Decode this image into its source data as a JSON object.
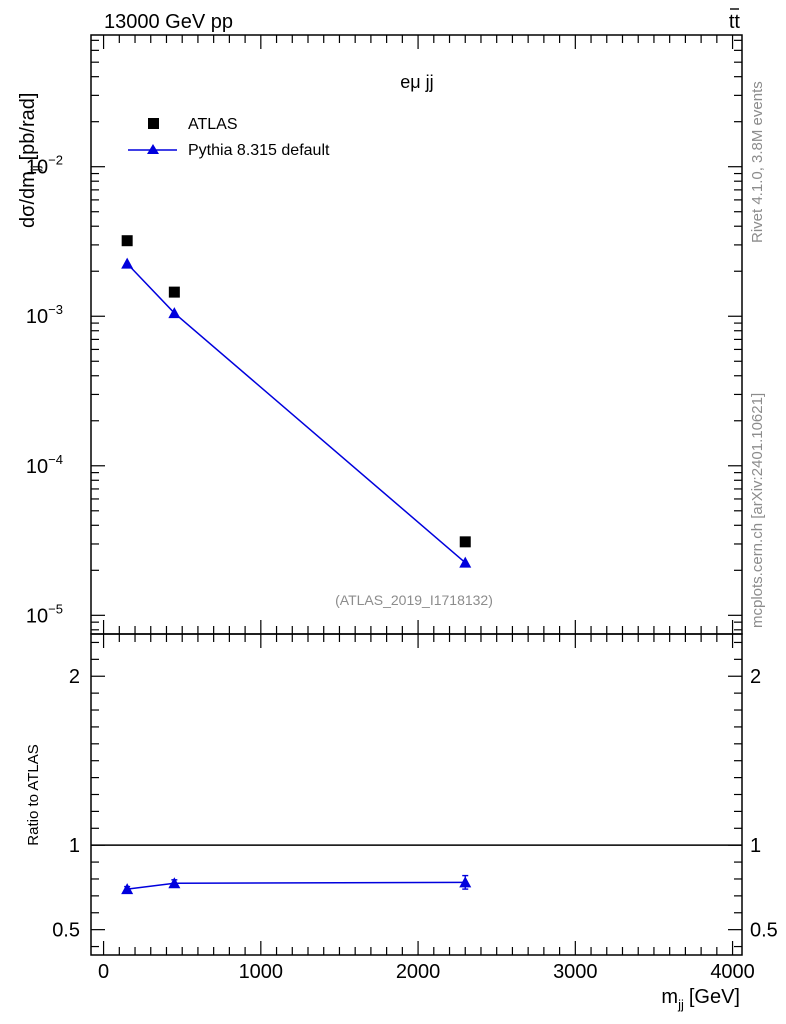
{
  "header": {
    "energy": "13000 GeV pp",
    "process_base": "tt",
    "channel": "eμ jj",
    "analysis": "(ATLAS_2019_I1718132)"
  },
  "side_labels": {
    "rivet": "Rivet 4.1.0,  3.8M events",
    "mcplots": "mcplots.cern.ch [arXiv:2401.10621]"
  },
  "colors": {
    "data": "#000000",
    "mc": "#0000dd",
    "grey": "#8c8c8c"
  },
  "chart_data": [
    {
      "type": "scatter",
      "panel": "main",
      "ylabel_main": "dσ/dm",
      "ylabel_sub": "jj",
      "ylabel_unit": "[pb/rad]",
      "yscale": "log",
      "xlim": [
        -80,
        4060
      ],
      "ylim": [
        7.5e-06,
        0.076
      ],
      "y_ticks": [
        {
          "base": "10",
          "exp": "−2",
          "value": 0.01
        },
        {
          "base": "10",
          "exp": "−3",
          "value": 0.001
        },
        {
          "base": "10",
          "exp": "−4",
          "value": 0.0001
        },
        {
          "base": "10",
          "exp": "−5",
          "value": 1e-05
        }
      ],
      "legend_position": "top-left",
      "series": [
        {
          "name": "ATLAS",
          "marker": "square",
          "x": [
            150,
            450,
            2300
          ],
          "y": [
            0.0032,
            0.00145,
            3.1e-05
          ]
        },
        {
          "name": "Pythia 8.315 default",
          "marker": "triangle",
          "line": true,
          "x": [
            150,
            450,
            2300
          ],
          "y": [
            0.00225,
            0.00105,
            2.25e-05
          ]
        }
      ]
    },
    {
      "type": "line",
      "panel": "ratio",
      "ylabel": "Ratio to ATLAS",
      "xlabel_main": "m",
      "xlabel_sub": "jj",
      "xlabel_unit": "[GeV]",
      "xlim": [
        -80,
        4060
      ],
      "ylim": [
        0.35,
        2.25
      ],
      "x_ticks": [
        "0",
        "1000",
        "2000",
        "3000",
        "4000"
      ],
      "x_tick_values": [
        0,
        1000,
        2000,
        3000,
        4000
      ],
      "y_ticks": [
        "0.5",
        "1",
        "2"
      ],
      "y_tick_values": [
        0.5,
        1,
        2
      ],
      "reference": 1,
      "series": [
        {
          "name": "Pythia 8.315 default",
          "x": [
            150,
            450,
            2300
          ],
          "y": [
            0.74,
            0.775,
            0.78
          ],
          "err": [
            0.015,
            0.02,
            0.04
          ]
        }
      ]
    }
  ]
}
